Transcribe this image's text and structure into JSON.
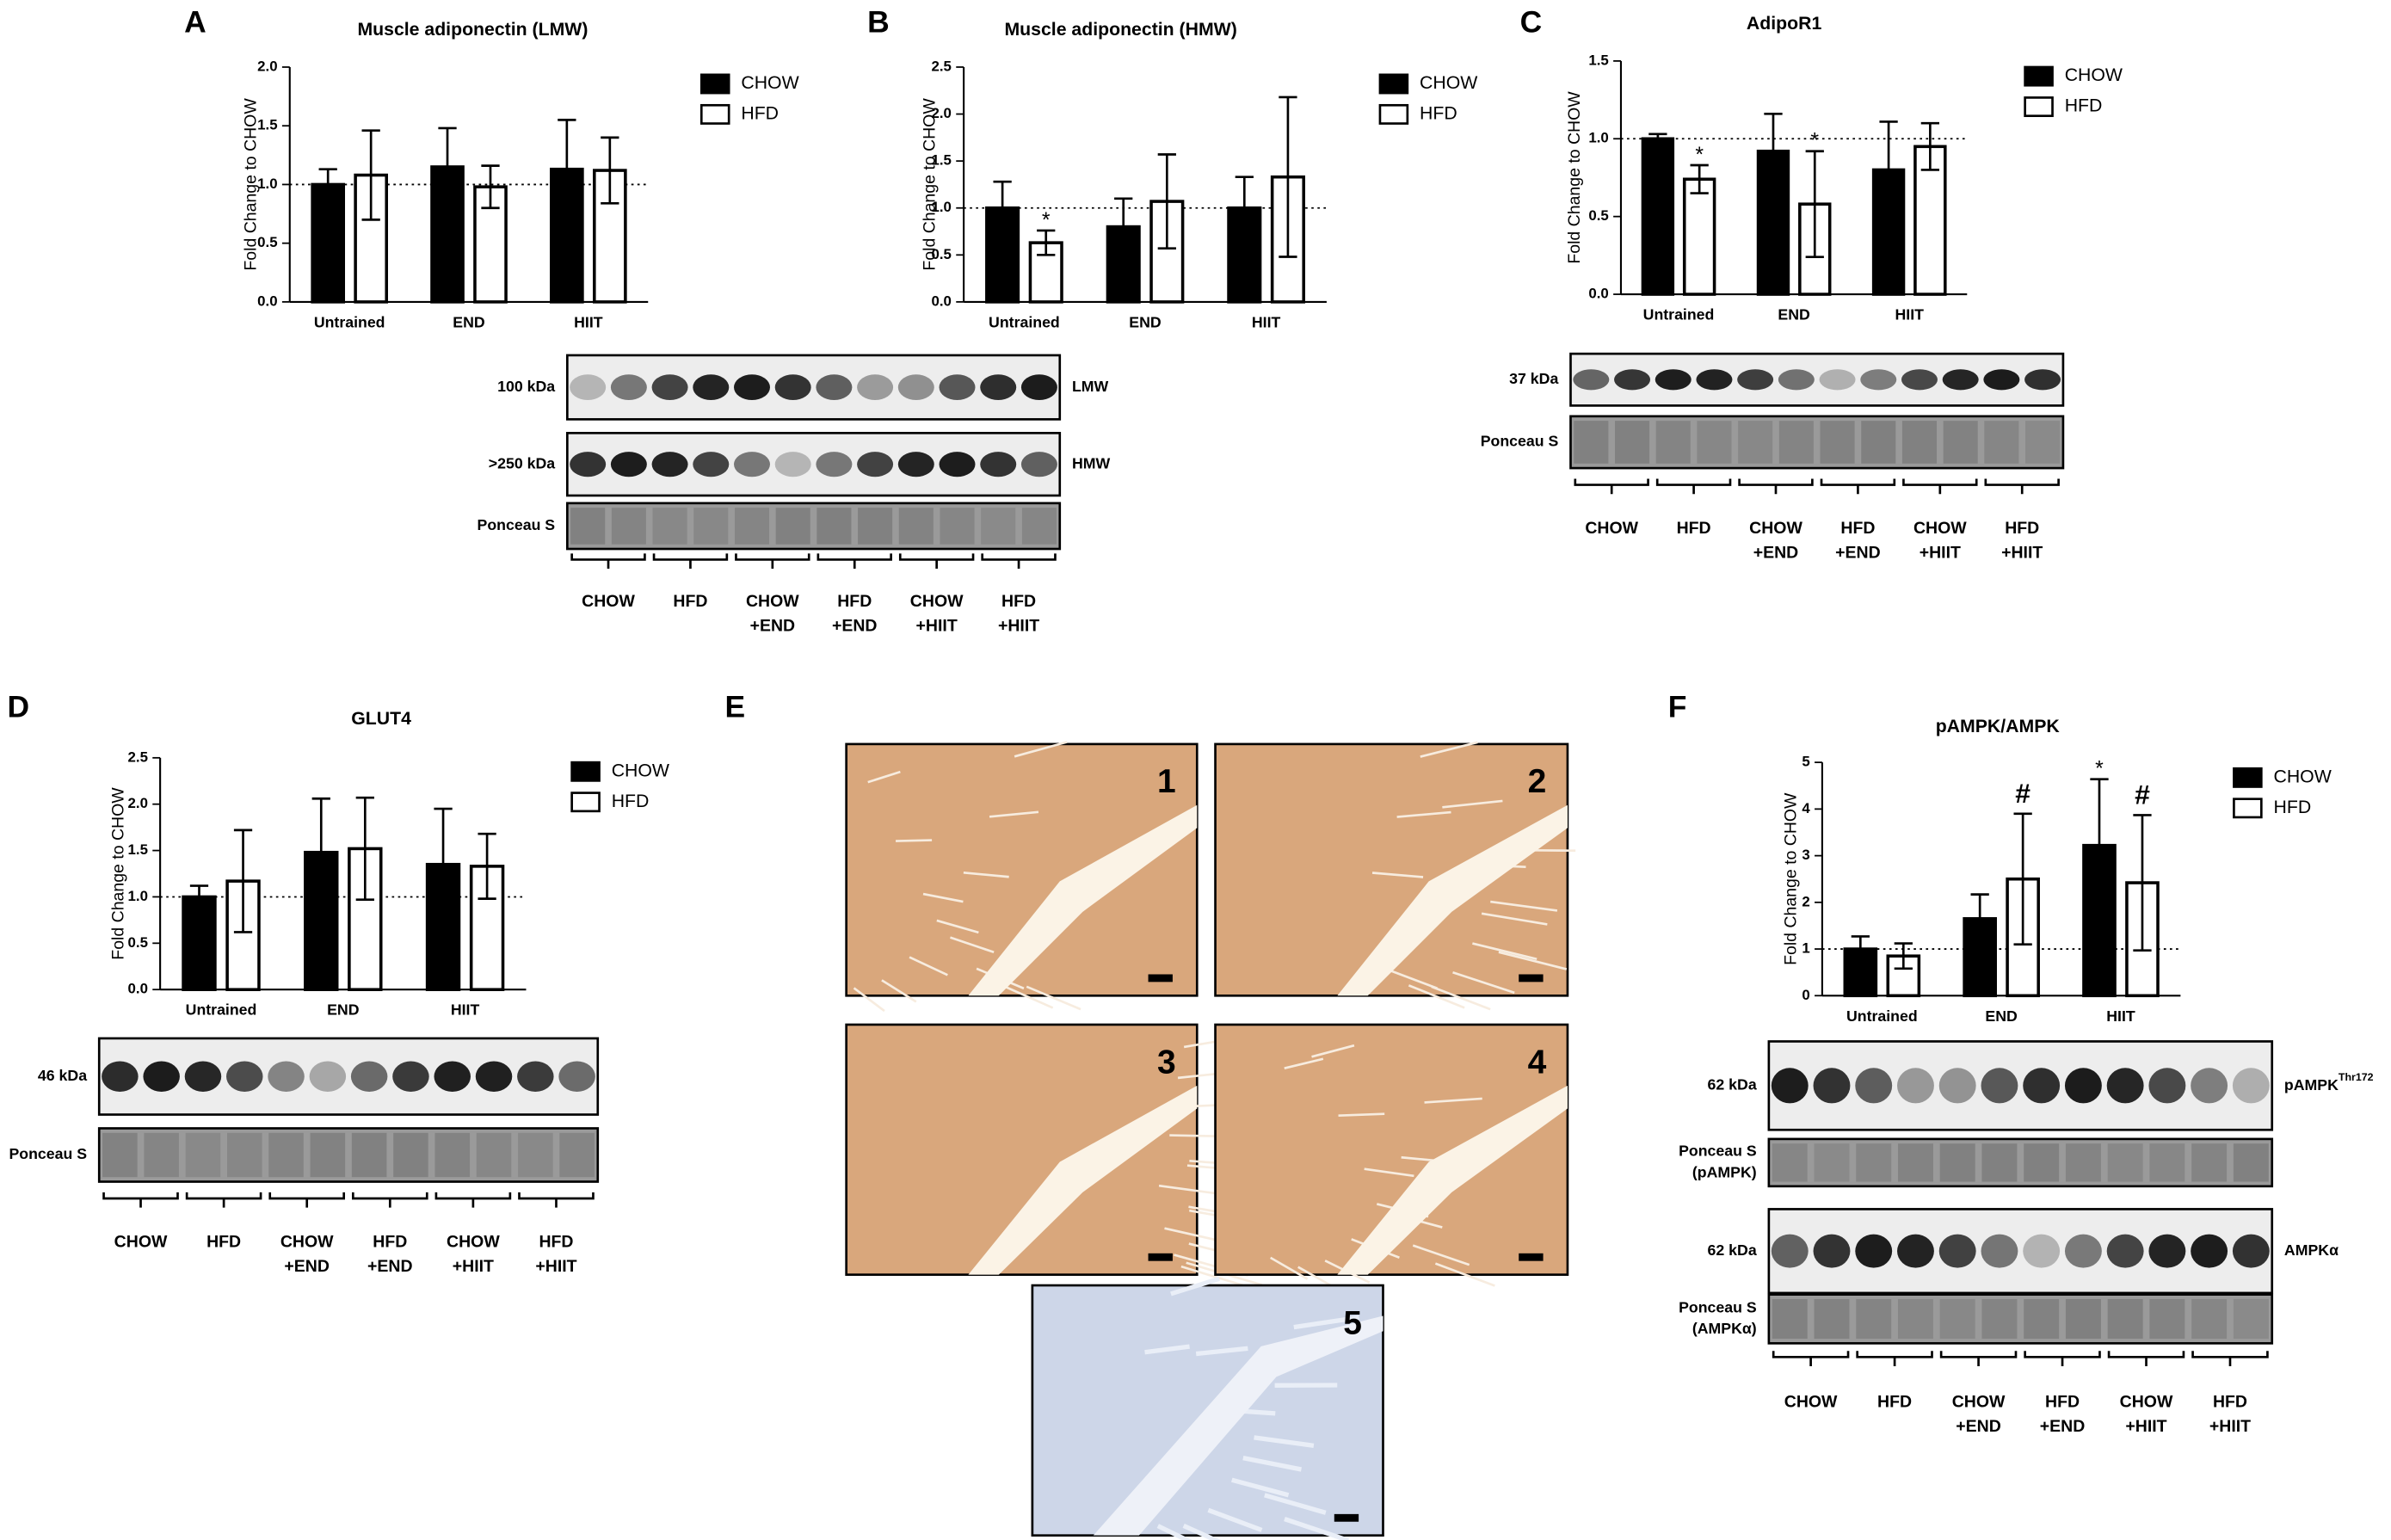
{
  "chart_data": [
    {
      "type": "bar",
      "panel": "A",
      "title": "Muscle adiponectin (LMW)",
      "ylabel": "Fold Change to CHOW",
      "categories": [
        "Untrained",
        "END",
        "HIIT"
      ],
      "series": [
        {
          "name": "CHOW",
          "color": "#000000",
          "values": [
            1.0,
            1.15,
            1.13
          ],
          "errors": [
            0.13,
            0.33,
            0.42
          ],
          "significance": [
            null,
            null,
            null
          ]
        },
        {
          "name": "HFD",
          "color": "#ffffff",
          "values": [
            1.08,
            0.98,
            1.12
          ],
          "errors": [
            0.38,
            0.18,
            0.28
          ],
          "significance": [
            null,
            null,
            null
          ]
        }
      ],
      "ylim": [
        0,
        2
      ],
      "yticks": [
        {
          "value": 0,
          "label": "0.0"
        },
        {
          "value": 0.5,
          "label": "0.5"
        },
        {
          "value": 1,
          "label": "1.0"
        },
        {
          "value": 1.5,
          "label": "1.5"
        },
        {
          "value": 2,
          "label": "2.0"
        }
      ],
      "reference_line": 1
    },
    {
      "type": "bar",
      "panel": "B",
      "title": "Muscle adiponectin (HMW)",
      "ylabel": "Fold Change to CHOW",
      "categories": [
        "Untrained",
        "END",
        "HIIT"
      ],
      "series": [
        {
          "name": "CHOW",
          "color": "#000000",
          "values": [
            1.0,
            0.8,
            1.0
          ],
          "errors": [
            0.28,
            0.3,
            0.33
          ],
          "significance": [
            null,
            null,
            null
          ]
        },
        {
          "name": "HFD",
          "color": "#ffffff",
          "values": [
            0.63,
            1.07,
            1.33
          ],
          "errors": [
            0.13,
            0.5,
            0.85
          ],
          "significance": [
            "*",
            null,
            null
          ]
        }
      ],
      "ylim": [
        0,
        2.5
      ],
      "yticks": [
        {
          "value": 0,
          "label": "0.0"
        },
        {
          "value": 0.5,
          "label": "0.5"
        },
        {
          "value": 1,
          "label": "1.0"
        },
        {
          "value": 1.5,
          "label": "1.5"
        },
        {
          "value": 2,
          "label": "2.0"
        },
        {
          "value": 2.5,
          "label": "2.5"
        }
      ],
      "reference_line": 1
    },
    {
      "type": "bar",
      "panel": "C",
      "title": "AdipoR1",
      "ylabel": "Fold Change to CHOW",
      "categories": [
        "Untrained",
        "END",
        "HIIT"
      ],
      "series": [
        {
          "name": "CHOW",
          "color": "#000000",
          "values": [
            1.0,
            0.92,
            0.8
          ],
          "errors": [
            0.03,
            0.24,
            0.31
          ],
          "significance": [
            null,
            null,
            null
          ]
        },
        {
          "name": "HFD",
          "color": "#ffffff",
          "values": [
            0.74,
            0.58,
            0.95
          ],
          "errors": [
            0.09,
            0.34,
            0.15
          ],
          "significance": [
            "*",
            "*",
            null
          ]
        }
      ],
      "ylim": [
        0,
        1.5
      ],
      "yticks": [
        {
          "value": 0,
          "label": "0.0"
        },
        {
          "value": 0.5,
          "label": "0.5"
        },
        {
          "value": 1,
          "label": "1.0"
        },
        {
          "value": 1.5,
          "label": "1.5"
        }
      ],
      "reference_line": 1
    },
    {
      "type": "bar",
      "panel": "D",
      "title": "GLUT4",
      "ylabel": "Fold Change to CHOW",
      "categories": [
        "Untrained",
        "END",
        "HIIT"
      ],
      "series": [
        {
          "name": "CHOW",
          "color": "#000000",
          "values": [
            1.0,
            1.48,
            1.35
          ],
          "errors": [
            0.12,
            0.58,
            0.6
          ],
          "significance": [
            null,
            null,
            null
          ]
        },
        {
          "name": "HFD",
          "color": "#ffffff",
          "values": [
            1.17,
            1.52,
            1.33
          ],
          "errors": [
            0.55,
            0.55,
            0.35
          ],
          "significance": [
            null,
            null,
            null
          ]
        }
      ],
      "ylim": [
        0,
        2.5
      ],
      "yticks": [
        {
          "value": 0,
          "label": "0.0"
        },
        {
          "value": 0.5,
          "label": "0.5"
        },
        {
          "value": 1,
          "label": "1.0"
        },
        {
          "value": 1.5,
          "label": "1.5"
        },
        {
          "value": 2,
          "label": "2.0"
        },
        {
          "value": 2.5,
          "label": "2.5"
        }
      ],
      "reference_line": 1
    },
    {
      "type": "bar",
      "panel": "F",
      "title": "pAMPK/AMPK",
      "ylabel": "Fold Change to CHOW",
      "categories": [
        "Untrained",
        "END",
        "HIIT"
      ],
      "series": [
        {
          "name": "CHOW",
          "color": "#000000",
          "values": [
            1.0,
            1.65,
            3.22
          ],
          "errors": [
            0.27,
            0.52,
            1.42
          ],
          "significance": [
            null,
            null,
            "*"
          ]
        },
        {
          "name": "HFD",
          "color": "#ffffff",
          "values": [
            0.85,
            2.5,
            2.42
          ],
          "errors": [
            0.27,
            1.4,
            1.45
          ],
          "significance": [
            null,
            "#",
            "#"
          ]
        }
      ],
      "ylim": [
        0,
        5
      ],
      "yticks": [
        0,
        1,
        2,
        3,
        4,
        5
      ],
      "reference_line": 1
    }
  ],
  "blots": [
    {
      "rows": [
        {
          "left": [
            "100 kDa"
          ],
          "right": "LMW"
        },
        {
          "left": [
            ">250 kDa"
          ],
          "right": "HMW"
        },
        {
          "left": [
            "Ponceau S"
          ]
        }
      ],
      "groups": [
        [
          "CHOW"
        ],
        [
          "HFD"
        ],
        [
          "CHOW",
          "+END"
        ],
        [
          "HFD",
          "+END"
        ],
        [
          "CHOW",
          "+HIIT"
        ],
        [
          "HFD",
          "+HIIT"
        ]
      ]
    },
    {
      "rows": [
        {
          "left": [
            "37 kDa"
          ],
          "right": ""
        },
        {
          "left": [
            "Ponceau S"
          ]
        }
      ],
      "groups": [
        [
          "CHOW"
        ],
        [
          "HFD"
        ],
        [
          "CHOW",
          "+END"
        ],
        [
          "HFD",
          "+END"
        ],
        [
          "CHOW",
          "+HIIT"
        ],
        [
          "HFD",
          "+HIIT"
        ]
      ]
    },
    {
      "rows": [
        {
          "left": [
            "46 kDa"
          ],
          "right": ""
        },
        {
          "left": [
            "Ponceau S"
          ]
        }
      ],
      "groups": [
        [
          "CHOW"
        ],
        [
          "HFD"
        ],
        [
          "CHOW",
          "+END"
        ],
        [
          "HFD",
          "+END"
        ],
        [
          "CHOW",
          "+HIIT"
        ],
        [
          "HFD",
          "+HIIT"
        ]
      ]
    },
    {
      "rows": [
        {
          "left": [
            "62 kDa"
          ],
          "right": "pAMPK",
          "right_superscript": "Thr172"
        },
        {
          "left": [
            "Ponceau S",
            "(pAMPK)"
          ]
        },
        {
          "left": [
            "62 kDa"
          ],
          "right": "AMPKα"
        },
        {
          "left": [
            "Ponceau S",
            "(AMPKα)"
          ]
        }
      ],
      "groups": [
        [
          "CHOW"
        ],
        [
          "HFD"
        ],
        [
          "CHOW",
          "+END"
        ],
        [
          "HFD",
          "+END"
        ],
        [
          "CHOW",
          "+HIIT"
        ],
        [
          "HFD",
          "+HIIT"
        ]
      ]
    }
  ],
  "micrographs": {
    "panel": "E",
    "labels": [
      "1",
      "2",
      "3",
      "4",
      "5"
    ]
  }
}
